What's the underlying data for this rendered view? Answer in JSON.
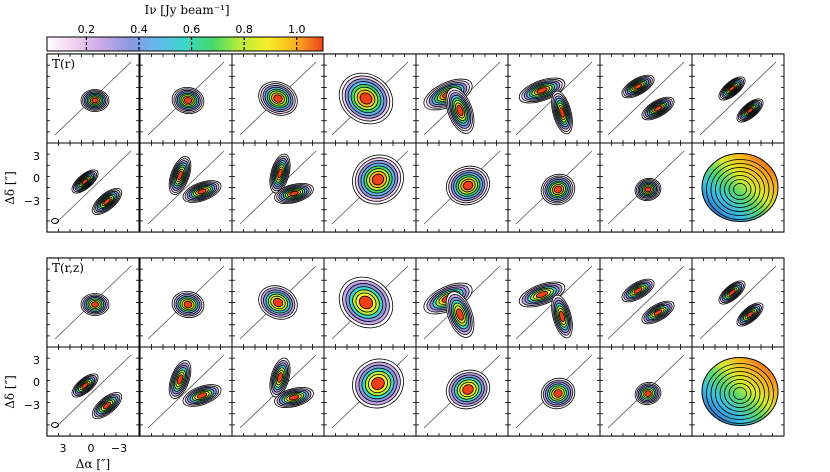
{
  "colorbar": {
    "title": "Iν [Jy beam⁻¹]",
    "ticks": [
      "0.2",
      "0.4",
      "0.6",
      "0.8",
      "1.0"
    ],
    "tick_values": [
      0.2,
      0.4,
      0.6,
      0.8,
      1.0
    ],
    "range": [
      0.05,
      1.1
    ],
    "colormap": [
      "#ffffff",
      "#f2d0f2",
      "#c8a8e8",
      "#8c9ae0",
      "#62b8ec",
      "#3cd8c8",
      "#44d86a",
      "#b8ee38",
      "#f6ee2a",
      "#fab21e",
      "#f0401a"
    ]
  },
  "models": [
    {
      "label": "T(r)"
    },
    {
      "label": "T(r,z)"
    }
  ],
  "axes": {
    "y_label": "Δδ [″]",
    "y_ticks": [
      "3",
      "0",
      "−3"
    ],
    "x_label": "Δα [″]",
    "x_ticks": [
      "3",
      "0",
      "−3"
    ]
  },
  "chart_data": {
    "type": "contour-channel-map",
    "panels_per_group": 16,
    "groups": [
      "T(r)",
      "T(r,z)"
    ],
    "axis_range_arcsec": [
      -5,
      5
    ]
  }
}
